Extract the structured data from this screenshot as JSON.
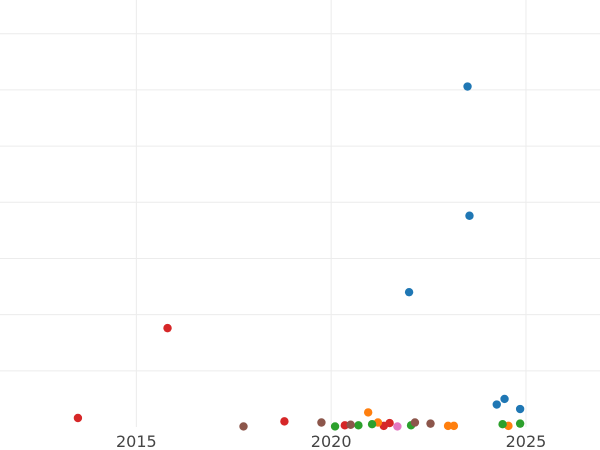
{
  "chart_data": {
    "type": "scatter",
    "title": "",
    "xlabel": "",
    "ylabel": "",
    "grid": true,
    "xlim": [
      2011.5,
      2026.9
    ],
    "ylim": [
      0,
      38
    ],
    "x_ticks": [
      2015,
      2020,
      2025
    ],
    "x_tick_labels": [
      "2015",
      "2020",
      "2025"
    ],
    "y_gridlines": [
      5,
      10,
      15,
      20,
      25,
      30,
      35
    ],
    "series": [
      {
        "color": "#1f77b4",
        "points": [
          {
            "x": 2023.5,
            "y": 30.3
          },
          {
            "x": 2023.55,
            "y": 18.8
          },
          {
            "x": 2022.0,
            "y": 12.0
          },
          {
            "x": 2024.25,
            "y": 2.0
          },
          {
            "x": 2024.45,
            "y": 2.5
          },
          {
            "x": 2024.85,
            "y": 1.6
          }
        ]
      },
      {
        "color": "#d62728",
        "points": [
          {
            "x": 2013.5,
            "y": 0.8
          },
          {
            "x": 2015.8,
            "y": 8.8
          },
          {
            "x": 2018.8,
            "y": 0.5
          },
          {
            "x": 2020.35,
            "y": 0.15
          },
          {
            "x": 2021.5,
            "y": 0.35
          },
          {
            "x": 2021.35,
            "y": 0.1
          }
        ]
      },
      {
        "color": "#ff7f0e",
        "points": [
          {
            "x": 2020.95,
            "y": 1.3
          },
          {
            "x": 2021.2,
            "y": 0.4
          },
          {
            "x": 2023.0,
            "y": 0.1
          },
          {
            "x": 2023.15,
            "y": 0.1
          },
          {
            "x": 2024.55,
            "y": 0.1
          }
        ]
      },
      {
        "color": "#2ca02c",
        "points": [
          {
            "x": 2020.1,
            "y": 0.05
          },
          {
            "x": 2020.7,
            "y": 0.15
          },
          {
            "x": 2021.05,
            "y": 0.25
          },
          {
            "x": 2022.05,
            "y": 0.15
          },
          {
            "x": 2024.4,
            "y": 0.25
          },
          {
            "x": 2024.85,
            "y": 0.3
          }
        ]
      },
      {
        "color": "#8c564b",
        "points": [
          {
            "x": 2017.75,
            "y": 0.05
          },
          {
            "x": 2019.75,
            "y": 0.4
          },
          {
            "x": 2020.5,
            "y": 0.2
          },
          {
            "x": 2022.15,
            "y": 0.4
          },
          {
            "x": 2022.55,
            "y": 0.3
          }
        ]
      },
      {
        "color": "#e377c2",
        "points": [
          {
            "x": 2021.7,
            "y": 0.05
          }
        ]
      }
    ]
  }
}
